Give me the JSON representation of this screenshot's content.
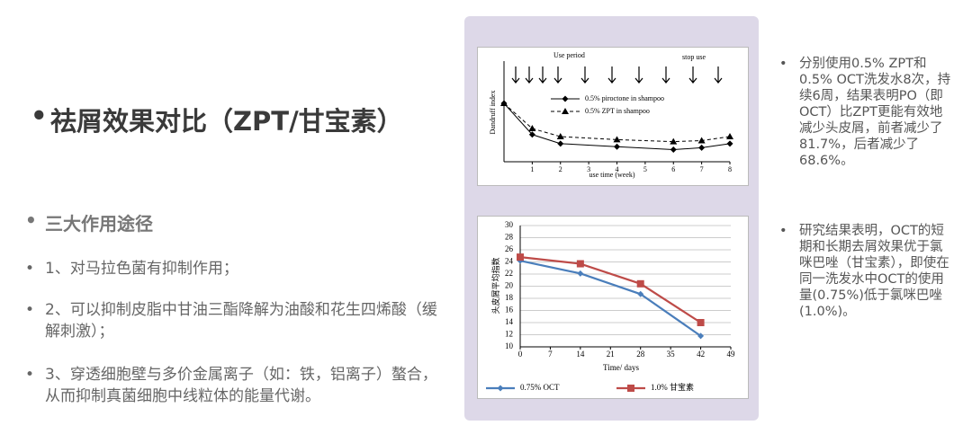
{
  "title": "祛屑效果对比（ZPT/甘宝素）",
  "subtitle": "三大作用途径",
  "points": [
    "1、对马拉色菌有抑制作用；",
    "2、可以抑制皮脂中甘油三酯降解为油酸和花生四烯酸（缓解刺激）；",
    "3、穿透细胞壁与多价金属离子（如：铁，铝离子）螯合，从而抑制真菌细胞中线粒体的能量代谢。"
  ],
  "notes": [
    "分别使用0.5% ZPT和0.5% OCT洗发水8次，持续6周，结果表明PO（即OCT）比ZPT更能有效地减少头皮屑，前者减少了81.7%，后者减少了68.6%。",
    "研究结果表明，OCT的短期和长期去屑效果优于氯咪巴唑（甘宝素），即使在同一洗发水中OCT的使用量(0.75%)低于氯咪巴唑(1.0%)。"
  ],
  "chart_data": [
    {
      "type": "line",
      "annotations": [
        "Use period",
        "stop use"
      ],
      "y_label": "Dandruff index",
      "x_label": "use time (week)",
      "x": [
        0,
        1,
        2,
        4,
        6,
        7,
        8
      ],
      "xlim": [
        0,
        8
      ],
      "xticks": [
        1,
        2,
        3,
        4,
        5,
        6,
        7,
        8
      ],
      "ylim": [
        0,
        10
      ],
      "series": [
        {
          "name": "0.5% piroctone in shampoo",
          "color": "#000000",
          "marker": "diamond",
          "dashed": false,
          "values": [
            5.8,
            2.7,
            1.8,
            1.5,
            1.2,
            1.4,
            1.8
          ]
        },
        {
          "name": "0.5% ZPT in shampoo",
          "color": "#000000",
          "marker": "triangle",
          "dashed": true,
          "values": [
            5.8,
            3.3,
            2.5,
            2.2,
            2.0,
            2.1,
            2.5
          ]
        }
      ]
    },
    {
      "type": "line",
      "y_label": "头皮屑平均指数",
      "x_label": "Time/ days",
      "grid": true,
      "x": [
        0,
        14,
        28,
        42
      ],
      "xlim": [
        0,
        49
      ],
      "xticks": [
        0,
        7,
        14,
        21,
        28,
        35,
        42,
        49
      ],
      "ylim": [
        10,
        30
      ],
      "yticks": [
        10,
        12,
        14,
        16,
        18,
        20,
        22,
        24,
        26,
        28,
        30
      ],
      "series": [
        {
          "name": "0.75% OCT",
          "color": "#4a7ebb",
          "marker": "diamond",
          "dashed": false,
          "values": [
            24.2,
            22.1,
            18.7,
            11.8
          ]
        },
        {
          "name": "1.0% 甘宝素",
          "color": "#be4b48",
          "marker": "square",
          "dashed": false,
          "values": [
            24.8,
            23.7,
            20.4,
            14.0
          ]
        }
      ]
    }
  ]
}
